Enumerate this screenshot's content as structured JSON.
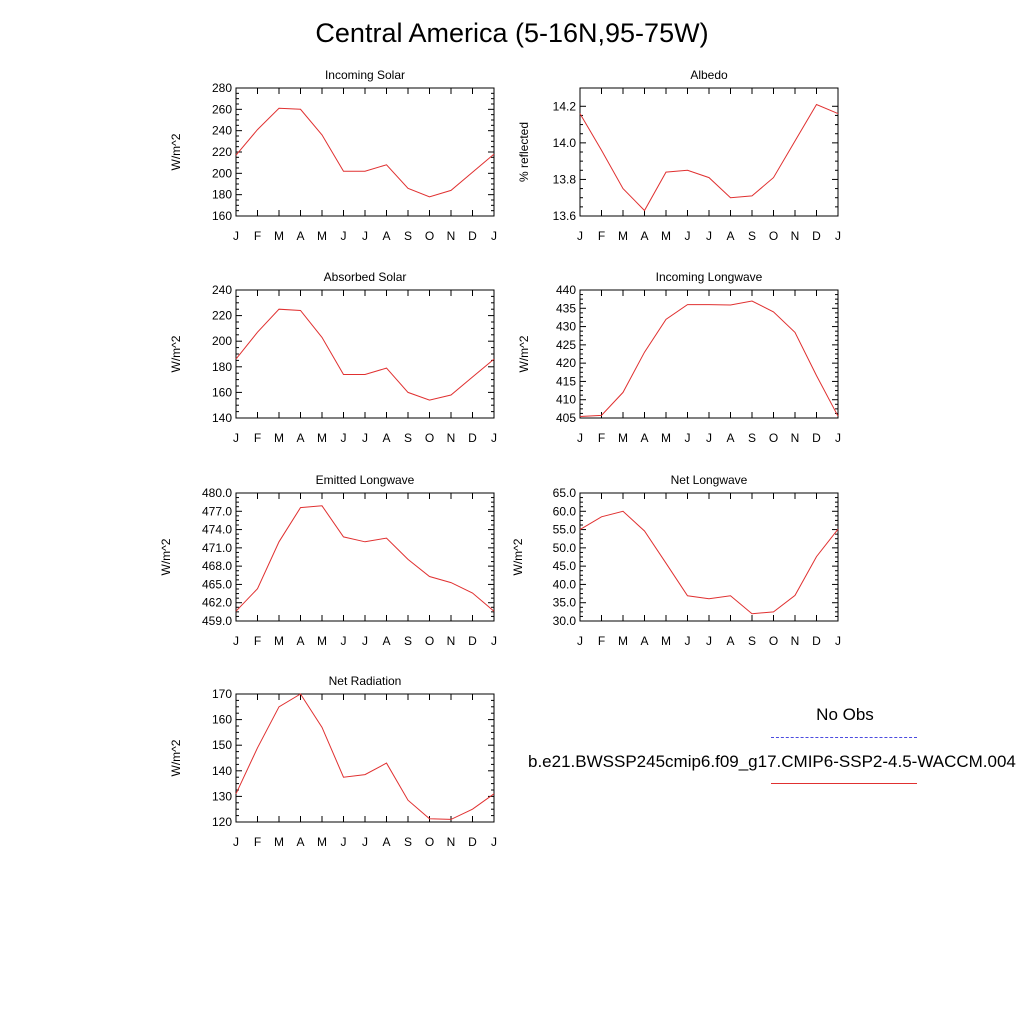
{
  "title": "Central America (5-16N,95-75W)",
  "legend": {
    "obs_label": "No Obs",
    "model_label": "b.e21.BWSSP245cmip6.f09_g17.CMIP6-SSP2-4.5-WACCM.004",
    "obs_color": "#4a4adf",
    "model_color": "#e03030"
  },
  "chart_data": [
    {
      "type": "line",
      "title": "Incoming Solar",
      "ylabel": "W/m^2",
      "ylim": [
        160,
        280
      ],
      "yticks": [
        "160",
        "180",
        "200",
        "220",
        "240",
        "260",
        "280"
      ],
      "categories": [
        "J",
        "F",
        "M",
        "A",
        "M",
        "J",
        "J",
        "A",
        "S",
        "O",
        "N",
        "D",
        "J"
      ],
      "values": [
        217,
        241,
        261,
        260,
        236,
        202,
        202,
        208,
        186,
        178,
        184,
        201,
        218
      ]
    },
    {
      "type": "line",
      "title": "Albedo",
      "ylabel": "% reflected",
      "ylim": [
        13.6,
        14.3
      ],
      "yticks": [
        "13.6",
        "13.8",
        "14.0",
        "14.2"
      ],
      "categories": [
        "J",
        "F",
        "M",
        "A",
        "M",
        "J",
        "J",
        "A",
        "S",
        "O",
        "N",
        "D",
        "J"
      ],
      "values": [
        14.16,
        13.96,
        13.75,
        13.63,
        13.84,
        13.85,
        13.81,
        13.7,
        13.71,
        13.81,
        14.01,
        14.21,
        14.16
      ]
    },
    {
      "type": "line",
      "title": "Absorbed Solar",
      "ylabel": "W/m^2",
      "ylim": [
        140,
        240
      ],
      "yticks": [
        "140",
        "160",
        "180",
        "200",
        "220",
        "240"
      ],
      "categories": [
        "J",
        "F",
        "M",
        "A",
        "M",
        "J",
        "J",
        "A",
        "S",
        "O",
        "N",
        "D",
        "J"
      ],
      "values": [
        186,
        207,
        225,
        224,
        203,
        174,
        174,
        179,
        160,
        154,
        158,
        172,
        186
      ]
    },
    {
      "type": "line",
      "title": "Incoming Longwave",
      "ylabel": "W/m^2",
      "ylim": [
        405,
        440
      ],
      "yticks": [
        "405",
        "410",
        "415",
        "420",
        "425",
        "430",
        "435",
        "440"
      ],
      "categories": [
        "J",
        "F",
        "M",
        "A",
        "M",
        "J",
        "J",
        "A",
        "S",
        "O",
        "N",
        "D",
        "J"
      ],
      "values": [
        405.4,
        405.7,
        412.0,
        423.0,
        432.0,
        436.0,
        436.0,
        435.9,
        437.0,
        434.0,
        428.4,
        416.6,
        405.5
      ]
    },
    {
      "type": "line",
      "title": "Emitted Longwave",
      "ylabel": "W/m^2",
      "ylim": [
        459,
        480
      ],
      "yticks": [
        "459.0",
        "462.0",
        "465.0",
        "468.0",
        "471.0",
        "474.0",
        "477.0",
        "480.0"
      ],
      "categories": [
        "J",
        "F",
        "M",
        "A",
        "M",
        "J",
        "J",
        "A",
        "S",
        "O",
        "N",
        "D",
        "J"
      ],
      "values": [
        460.6,
        464.3,
        472.0,
        477.6,
        477.9,
        472.8,
        472.0,
        472.6,
        469.1,
        466.3,
        465.3,
        463.6,
        460.6
      ]
    },
    {
      "type": "line",
      "title": "Net Longwave",
      "ylabel": "W/m^2",
      "ylim": [
        30,
        65
      ],
      "yticks": [
        "30.0",
        "35.0",
        "40.0",
        "45.0",
        "50.0",
        "55.0",
        "60.0",
        "65.0"
      ],
      "categories": [
        "J",
        "F",
        "M",
        "A",
        "M",
        "J",
        "J",
        "A",
        "S",
        "O",
        "N",
        "D",
        "J"
      ],
      "values": [
        55.0,
        58.5,
        60.0,
        54.6,
        45.8,
        36.9,
        36.1,
        36.9,
        32.0,
        32.5,
        37.0,
        47.6,
        55.1
      ]
    },
    {
      "type": "line",
      "title": "Net Radiation",
      "ylabel": "W/m^2",
      "ylim": [
        120,
        170
      ],
      "yticks": [
        "120",
        "130",
        "140",
        "150",
        "160",
        "170"
      ],
      "categories": [
        "J",
        "F",
        "M",
        "A",
        "M",
        "J",
        "J",
        "A",
        "S",
        "O",
        "N",
        "D",
        "J"
      ],
      "values": [
        131,
        149,
        165,
        170,
        157,
        137.5,
        138.5,
        143,
        128.5,
        121.3,
        121,
        125,
        131
      ]
    }
  ]
}
